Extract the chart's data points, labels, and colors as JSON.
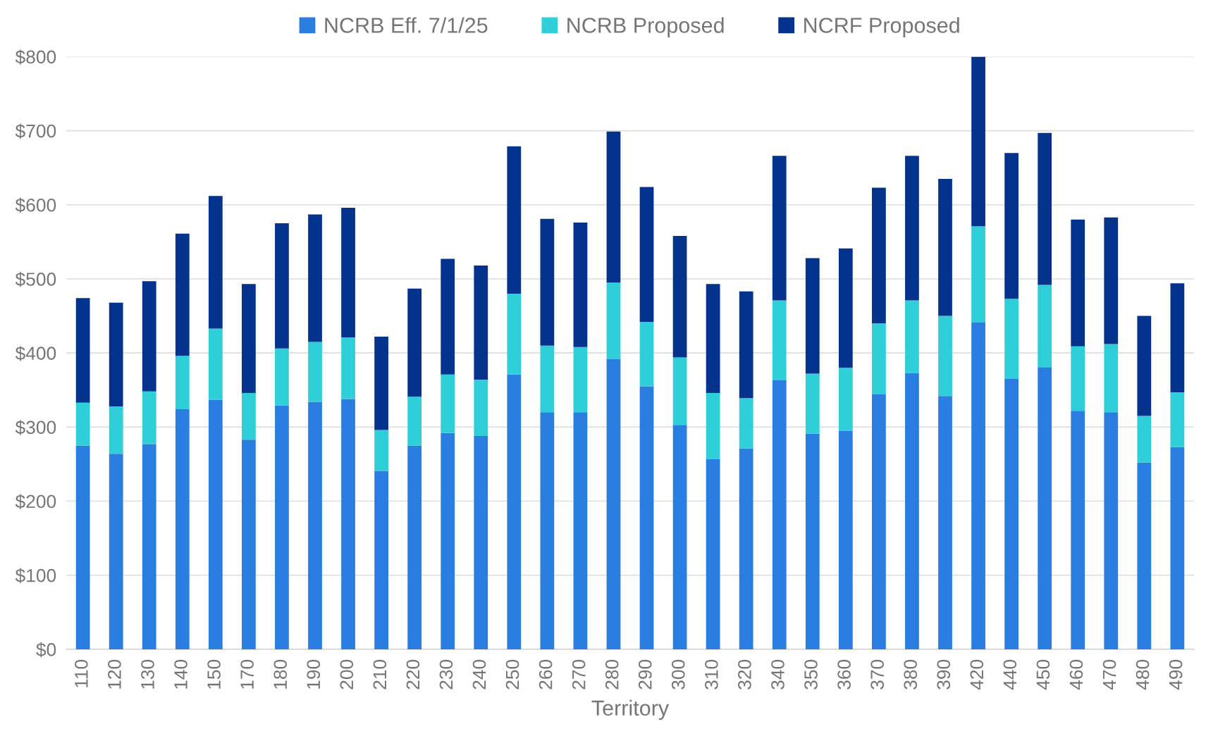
{
  "chart_data": {
    "type": "bar",
    "stacked": true,
    "xlabel": "Territory",
    "categories": [
      "110",
      "120",
      "130",
      "140",
      "150",
      "170",
      "180",
      "190",
      "200",
      "210",
      "220",
      "230",
      "240",
      "250",
      "260",
      "270",
      "280",
      "290",
      "300",
      "310",
      "320",
      "340",
      "350",
      "360",
      "370",
      "380",
      "390",
      "420",
      "440",
      "450",
      "460",
      "470",
      "480",
      "490"
    ],
    "series": [
      {
        "name": "NCRB Eff. 7/1/25",
        "color": "#2a7de1",
        "values": [
          275,
          264,
          277,
          324,
          337,
          283,
          329,
          334,
          338,
          241,
          275,
          292,
          288,
          371,
          320,
          320,
          392,
          355,
          303,
          257,
          271,
          363,
          291,
          295,
          344,
          373,
          342,
          441,
          365,
          381,
          322,
          320,
          252,
          273
        ]
      },
      {
        "name": "NCRB Proposed",
        "color": "#2ecfd8",
        "values": [
          58,
          64,
          71,
          72,
          96,
          63,
          77,
          81,
          83,
          55,
          66,
          79,
          76,
          109,
          90,
          88,
          103,
          87,
          91,
          89,
          68,
          108,
          81,
          85,
          96,
          98,
          108,
          130,
          108,
          111,
          87,
          92,
          63,
          74
        ]
      },
      {
        "name": "NCRF Proposed",
        "color": "#03338c",
        "values": [
          141,
          140,
          149,
          165,
          179,
          147,
          169,
          172,
          175,
          126,
          146,
          156,
          154,
          199,
          171,
          168,
          204,
          182,
          164,
          147,
          144,
          195,
          156,
          161,
          183,
          195,
          185,
          229,
          197,
          205,
          171,
          171,
          135,
          147
        ]
      }
    ],
    "ylim": [
      0,
      800
    ],
    "yticks": [
      {
        "value": 0,
        "label": "$0"
      },
      {
        "value": 100,
        "label": "$100"
      },
      {
        "value": 200,
        "label": "$200"
      },
      {
        "value": 300,
        "label": "$300"
      },
      {
        "value": 400,
        "label": "$400"
      },
      {
        "value": 500,
        "label": "$500"
      },
      {
        "value": 600,
        "label": "$600"
      },
      {
        "value": 700,
        "label": "$700"
      },
      {
        "value": 800,
        "label": "$800"
      }
    ],
    "grid": "y",
    "legend": "top"
  }
}
